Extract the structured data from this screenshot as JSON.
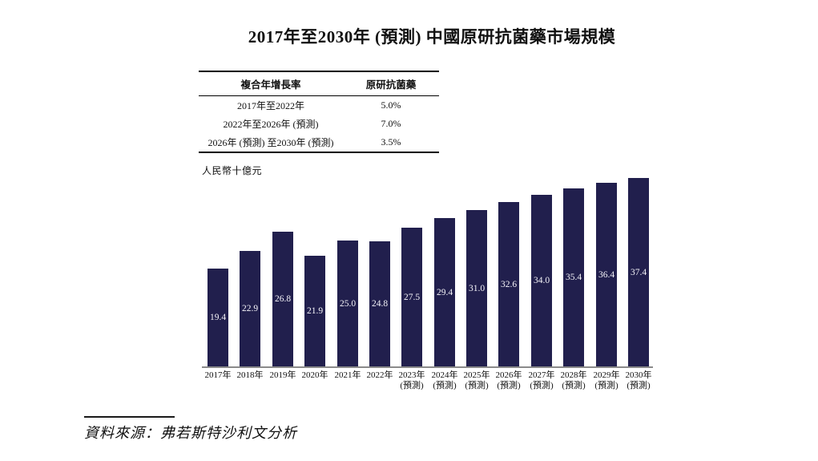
{
  "title": "2017年至2030年 (預測) 中國原研抗菌藥市場規模",
  "cagr_table": {
    "col_headers": [
      "複合年增長率",
      "原研抗菌藥"
    ],
    "rows": [
      {
        "period": "2017年至2022年",
        "value": "5.0%"
      },
      {
        "period": "2022年至2026年 (預測)",
        "value": "7.0%"
      },
      {
        "period": "2026年 (預測) 至2030年 (預測)",
        "value": "3.5%"
      }
    ]
  },
  "unit_label": "人民幣十億元",
  "chart_data": {
    "type": "bar",
    "title": "2017年至2030年 (預測) 中國原研抗菌藥市場規模",
    "ylabel": "人民幣十億元",
    "xlabel": "",
    "ylim": [
      0,
      37.4
    ],
    "grid": false,
    "legend": "none",
    "bar_color": "#211f4d",
    "value_label_color": "#f4f3f8",
    "categories": [
      {
        "year": "2017年",
        "note": ""
      },
      {
        "year": "2018年",
        "note": ""
      },
      {
        "year": "2019年",
        "note": ""
      },
      {
        "year": "2020年",
        "note": ""
      },
      {
        "year": "2021年",
        "note": ""
      },
      {
        "year": "2022年",
        "note": ""
      },
      {
        "year": "2023年",
        "note": "(預測)"
      },
      {
        "year": "2024年",
        "note": "(預測)"
      },
      {
        "year": "2025年",
        "note": "(預測)"
      },
      {
        "year": "2026年",
        "note": "(預測)"
      },
      {
        "year": "2027年",
        "note": "(預測)"
      },
      {
        "year": "2028年",
        "note": "(預測)"
      },
      {
        "year": "2029年",
        "note": "(預測)"
      },
      {
        "year": "2030年",
        "note": "(預測)"
      }
    ],
    "values": [
      19.4,
      22.9,
      26.8,
      21.9,
      25.0,
      24.8,
      27.5,
      29.4,
      31.0,
      32.6,
      34.0,
      35.4,
      36.4,
      37.4
    ]
  },
  "source": "資料來源：弗若斯特沙利文分析"
}
